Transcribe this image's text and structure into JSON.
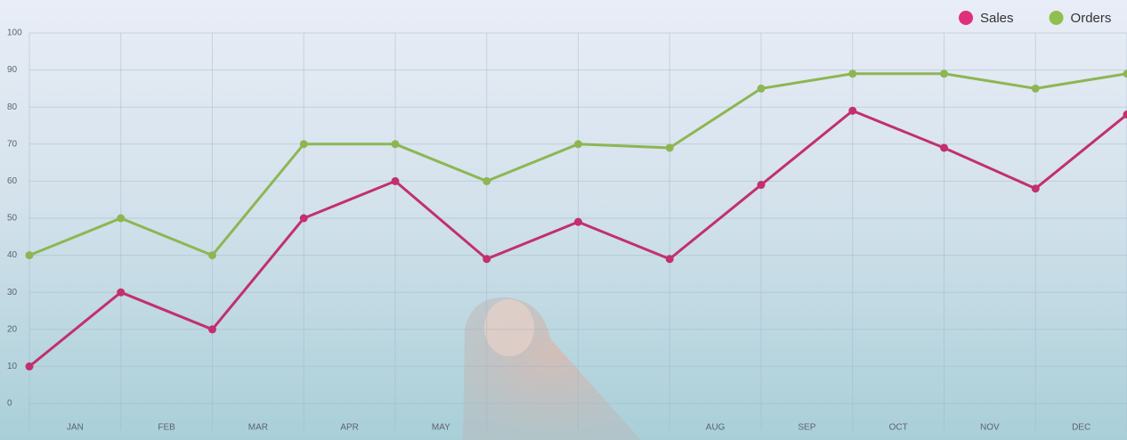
{
  "chart_data": {
    "type": "line",
    "x": [
      0,
      1,
      2,
      3,
      4,
      5,
      6,
      7,
      8,
      9,
      10,
      11,
      12
    ],
    "xlim": [
      0,
      12
    ],
    "xticks": [
      {
        "value": 0.5,
        "label": "JAN"
      },
      {
        "value": 1.5,
        "label": "FEB"
      },
      {
        "value": 2.5,
        "label": "MAR"
      },
      {
        "value": 3.5,
        "label": "APR"
      },
      {
        "value": 4.5,
        "label": "MAY"
      },
      {
        "value": 7.5,
        "label": "AUG"
      },
      {
        "value": 8.5,
        "label": "SEP"
      },
      {
        "value": 9.5,
        "label": "OCT"
      },
      {
        "value": 10.5,
        "label": "NOV"
      },
      {
        "value": 11.5,
        "label": "DEC"
      }
    ],
    "ylim": [
      0,
      100
    ],
    "yticks": [
      0,
      10,
      20,
      30,
      40,
      50,
      60,
      70,
      80,
      90,
      100
    ],
    "grid": true,
    "legend": "top-right",
    "series": [
      {
        "name": "Sales",
        "color": "#c2306e",
        "marker_color": "#e0307c",
        "values": [
          10,
          30,
          20,
          50,
          60,
          39,
          49,
          39,
          59,
          79,
          69,
          58,
          78
        ]
      },
      {
        "name": "Orders",
        "color": "#8db653",
        "marker_color": "#8fc04f",
        "values": [
          40,
          50,
          40,
          70,
          70,
          60,
          70,
          69,
          85,
          89,
          89,
          85,
          89
        ]
      }
    ]
  }
}
